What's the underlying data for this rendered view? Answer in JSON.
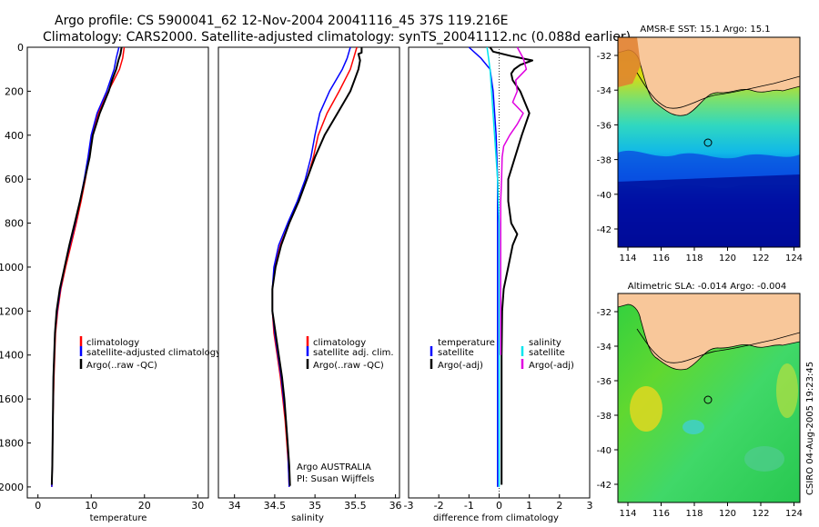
{
  "header": {
    "line1": "Argo profile: CS 5900041_62 12-Nov-2004 20041116_45 37S 119.216E",
    "line2": "Climatology: CARS2000. Satellite-adjusted climatology: synTS_20041112.nc (0.088d earlier)"
  },
  "colors": {
    "climatology": "#ff0000",
    "satellite": "#0000ff",
    "argo": "#000000",
    "salinity_satellite": "#00e5ee",
    "salinity_argo": "#e000e0"
  },
  "chart_data": [
    {
      "id": "temperature",
      "type": "line",
      "xlabel": "temperature",
      "xlim": [
        -2,
        32
      ],
      "ylim": [
        2050,
        0
      ],
      "xticks": [
        0,
        10,
        20,
        30
      ],
      "yticks": [
        0,
        200,
        400,
        600,
        800,
        1000,
        1200,
        1400,
        1600,
        1800,
        2000
      ],
      "legend": [
        "climatology",
        "satellite-adjusted climatology",
        "Argo(..raw -QC)"
      ],
      "series": [
        {
          "name": "climatology",
          "color": "#ff0000",
          "depth": [
            0,
            50,
            100,
            200,
            300,
            400,
            500,
            600,
            700,
            800,
            900,
            1000,
            1100,
            1200,
            1300,
            1500,
            1700,
            1900,
            2000
          ],
          "values": [
            16.2,
            15.9,
            15.3,
            13.2,
            11.3,
            10.2,
            9.6,
            8.9,
            8.1,
            7.2,
            6.2,
            5.2,
            4.3,
            3.7,
            3.3,
            3.0,
            2.8,
            2.7,
            2.6
          ]
        },
        {
          "name": "satellite-adjusted climatology",
          "color": "#0000ff",
          "depth": [
            0,
            50,
            100,
            200,
            300,
            400,
            500,
            600,
            700,
            800,
            900,
            1000,
            1100,
            1200,
            1300,
            1500,
            1700,
            1900,
            2000
          ],
          "values": [
            15.2,
            14.7,
            14.3,
            12.9,
            11.1,
            10.0,
            9.4,
            8.7,
            7.9,
            7.0,
            6.0,
            5.0,
            4.2,
            3.6,
            3.2,
            2.9,
            2.8,
            2.7,
            2.6
          ]
        },
        {
          "name": "Argo(..raw -QC)",
          "color": "#000000",
          "depth": [
            0,
            30,
            60,
            100,
            150,
            200,
            300,
            400,
            450,
            500,
            600,
            700,
            800,
            900,
            1000,
            1100,
            1200,
            1300,
            1500,
            1700,
            1900,
            1990
          ],
          "values": [
            15.7,
            15.5,
            15.1,
            14.7,
            13.9,
            13.3,
            11.6,
            10.3,
            10.0,
            9.7,
            8.8,
            7.9,
            6.9,
            5.9,
            5.0,
            4.1,
            3.5,
            3.2,
            2.9,
            2.8,
            2.7,
            2.6
          ]
        }
      ]
    },
    {
      "id": "salinity",
      "type": "line",
      "xlabel": "salinity",
      "xlim": [
        33.8,
        36.05
      ],
      "ylim": [
        2050,
        0
      ],
      "xticks": [
        34,
        34.5,
        35,
        35.5,
        36
      ],
      "legend": [
        "climatology",
        "satellite adj. clim.",
        "Argo(..raw -QC)"
      ],
      "credit": [
        "Argo AUSTRALIA",
        "PI: Susan Wijffels"
      ],
      "series": [
        {
          "name": "climatology",
          "color": "#ff0000",
          "depth": [
            0,
            50,
            100,
            200,
            300,
            400,
            500,
            600,
            700,
            800,
            900,
            1000,
            1100,
            1200,
            1300,
            1400,
            1500,
            1600,
            1700,
            1800,
            1900,
            2000
          ],
          "values": [
            35.52,
            35.48,
            35.44,
            35.3,
            35.15,
            35.04,
            34.98,
            34.9,
            34.8,
            34.68,
            34.57,
            34.5,
            34.47,
            34.47,
            34.49,
            34.53,
            34.57,
            34.6,
            34.63,
            34.65,
            34.67,
            34.68
          ]
        },
        {
          "name": "satellite adj. clim.",
          "color": "#0000ff",
          "depth": [
            0,
            50,
            100,
            200,
            300,
            400,
            500,
            600,
            700,
            800,
            900,
            1000,
            1100,
            1200,
            1300,
            1400,
            1500,
            1600,
            1700,
            1800,
            1900,
            2000
          ],
          "values": [
            35.44,
            35.4,
            35.34,
            35.18,
            35.06,
            35.0,
            34.95,
            34.88,
            34.78,
            34.66,
            34.55,
            34.49,
            34.47,
            34.47,
            34.5,
            34.54,
            34.58,
            34.61,
            34.64,
            34.66,
            34.67,
            34.68
          ]
        },
        {
          "name": "Argo(..raw -QC)",
          "color": "#000000",
          "depth": [
            0,
            25,
            30,
            60,
            100,
            150,
            200,
            300,
            400,
            500,
            600,
            700,
            800,
            900,
            1000,
            1100,
            1200,
            1300,
            1400,
            1500,
            1600,
            1700,
            1800,
            1900,
            1995
          ],
          "values": [
            35.58,
            35.58,
            35.54,
            35.56,
            35.54,
            35.49,
            35.44,
            35.28,
            35.12,
            35.0,
            34.9,
            34.8,
            34.68,
            34.58,
            34.51,
            34.47,
            34.47,
            34.51,
            34.55,
            34.59,
            34.62,
            34.64,
            34.66,
            34.68,
            34.69
          ]
        }
      ]
    },
    {
      "id": "difference",
      "type": "line",
      "xlabel": "difference from climatology",
      "xlim": [
        -3,
        3
      ],
      "ylim": [
        2050,
        0
      ],
      "xticks": [
        -3,
        -2,
        -1,
        0,
        1,
        2,
        3
      ],
      "legend_left": [
        "temperature",
        "satellite",
        "Argo(-adj)"
      ],
      "legend_right": [
        "salinity",
        "satellite",
        "Argo(-adj)"
      ],
      "series": [
        {
          "name": "temperature satellite",
          "color": "#0000ff",
          "depth": [
            0,
            50,
            100,
            200,
            400,
            600,
            800,
            1000,
            1200,
            1400,
            1600,
            1800,
            2000
          ],
          "values": [
            -1.0,
            -0.6,
            -0.3,
            -0.2,
            -0.1,
            -0.05,
            -0.05,
            -0.05,
            -0.05,
            -0.05,
            -0.05,
            -0.05,
            -0.05
          ]
        },
        {
          "name": "temperature Argo(-adj)",
          "color": "#000000",
          "depth": [
            0,
            20,
            40,
            60,
            80,
            100,
            120,
            150,
            200,
            300,
            400,
            600,
            700,
            800,
            850,
            900,
            1000,
            1100,
            1200,
            1400,
            1600,
            1800,
            1990
          ],
          "values": [
            -0.3,
            -0.2,
            0.4,
            1.1,
            0.7,
            0.5,
            0.4,
            0.45,
            0.7,
            1.0,
            0.75,
            0.3,
            0.3,
            0.4,
            0.6,
            0.45,
            0.3,
            0.15,
            0.1,
            0.08,
            0.08,
            0.08,
            0.08
          ]
        },
        {
          "name": "salinity satellite",
          "color": "#00e5ee",
          "depth": [
            0,
            50,
            100,
            200,
            400,
            600,
            800,
            1000,
            1200,
            1400,
            1600,
            1800,
            2000
          ],
          "values": [
            -0.4,
            -0.35,
            -0.3,
            -0.25,
            -0.15,
            -0.05,
            0.0,
            0.0,
            0.0,
            0.0,
            0.0,
            0.0,
            0.0
          ]
        },
        {
          "name": "salinity Argo(-adj)",
          "color": "#e000e0",
          "depth": [
            0,
            50,
            100,
            150,
            200,
            250,
            300,
            350,
            400,
            450,
            500,
            600,
            700,
            800,
            1000,
            1200,
            1400
          ],
          "values": [
            0.6,
            0.8,
            0.9,
            0.55,
            0.6,
            0.45,
            0.8,
            0.6,
            0.35,
            0.15,
            0.1,
            0.08,
            0.05,
            0.05,
            0.05,
            0.05,
            0.05
          ]
        }
      ]
    }
  ],
  "maps": {
    "lon_ticks": [
      "114",
      "116",
      "118",
      "120",
      "122",
      "124"
    ],
    "lat_ticks": [
      "-32",
      "-34",
      "-36",
      "-38",
      "-40",
      "-42"
    ],
    "sst": {
      "title": "AMSR-E SST: 15.1 Argo: 15.1"
    },
    "sla": {
      "title": "Altimetric SLA: -0.014 Argo: -0.004"
    }
  },
  "footer": {
    "timestamp": "CSIRO 04-Aug-2005 19:23:45"
  }
}
